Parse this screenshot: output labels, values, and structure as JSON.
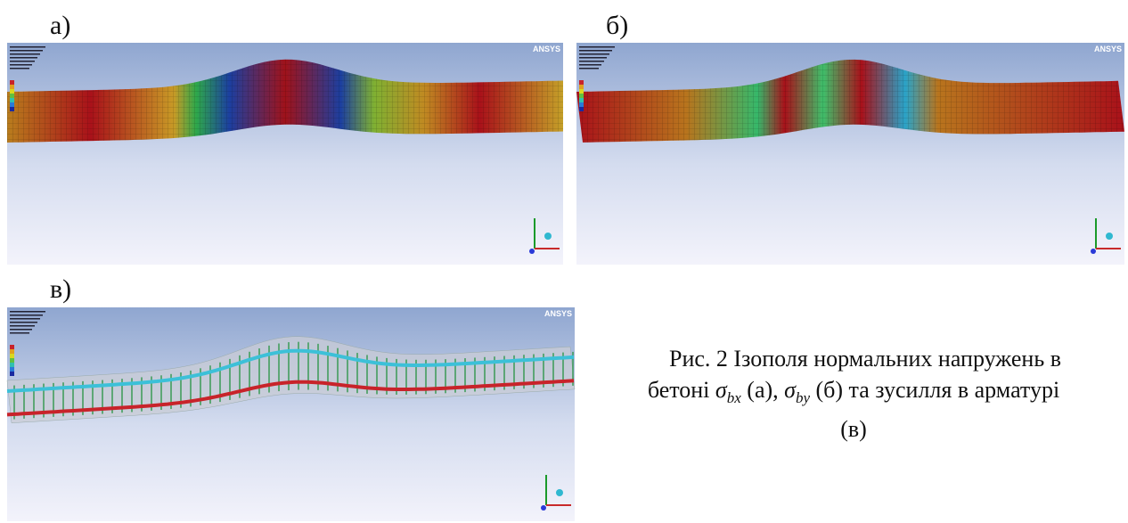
{
  "figure": {
    "panels": [
      {
        "label": "а)",
        "logo": "ANSYS"
      },
      {
        "label": "б)",
        "logo": "ANSYS"
      },
      {
        "label": "в)",
        "logo": "ANSYS"
      }
    ],
    "caption": {
      "line_1": "Рис. 2 Ізополя нормальних напружень в",
      "line_2": [
        "бетоні ",
        "σ",
        "bx",
        " (а), ",
        "σ",
        "by",
        " (б) та зусилля в арматурі"
      ],
      "line_3": "(в)"
    }
  }
}
